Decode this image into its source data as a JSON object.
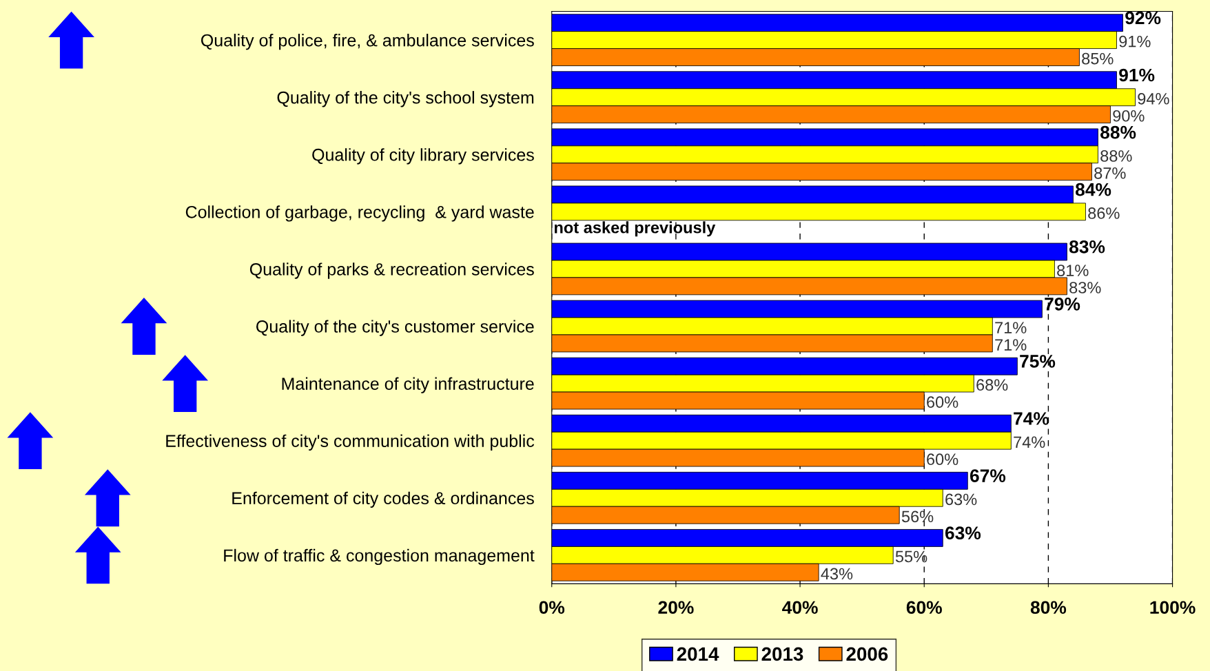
{
  "chart_data": {
    "type": "bar",
    "orientation": "horizontal",
    "categories": [
      "Quality of police, fire, & ambulance services",
      "Quality of the city's school system",
      "Quality of city library services",
      "Collection of garbage, recycling  & yard waste",
      "Quality of parks & recreation services",
      "Quality of the city's customer service",
      "Maintenance of city infrastructure",
      "Effectiveness of city's communication with public",
      "Enforcement of city codes & ordinances",
      "Flow of traffic & congestion management"
    ],
    "series": [
      {
        "name": "2014",
        "color": "#0000ff",
        "values": [
          92,
          91,
          88,
          84,
          83,
          79,
          75,
          74,
          67,
          63
        ],
        "value_labels": [
          "92%",
          "91%",
          "88%",
          "84%",
          "83%",
          "79%",
          "75%",
          "74%",
          "67%",
          "63%"
        ]
      },
      {
        "name": "2013",
        "color": "#ffff00",
        "values": [
          91,
          94,
          88,
          86,
          81,
          71,
          68,
          74,
          63,
          55
        ],
        "value_labels": [
          "91%",
          "94%",
          "88%",
          "86%",
          "81%",
          "71%",
          "68%",
          "74%",
          "63%",
          "55%"
        ]
      },
      {
        "name": "2006",
        "color": "#ff8000",
        "values": [
          85,
          90,
          87,
          null,
          83,
          71,
          60,
          60,
          56,
          43
        ],
        "value_labels": [
          "85%",
          "90%",
          "87%",
          null,
          "83%",
          "71%",
          "60%",
          "60%",
          "56%",
          "43%"
        ]
      }
    ],
    "xlim": [
      0,
      100
    ],
    "xticks": [
      {
        "value": 0,
        "label": "0%"
      },
      {
        "value": 20,
        "label": "20%"
      },
      {
        "value": 40,
        "label": "40%"
      },
      {
        "value": 60,
        "label": "60%"
      },
      {
        "value": 80,
        "label": "80%"
      },
      {
        "value": 100,
        "label": "100%"
      }
    ],
    "grid": "x",
    "legend": "bottom",
    "annotations": [
      "not asked previously"
    ]
  }
}
